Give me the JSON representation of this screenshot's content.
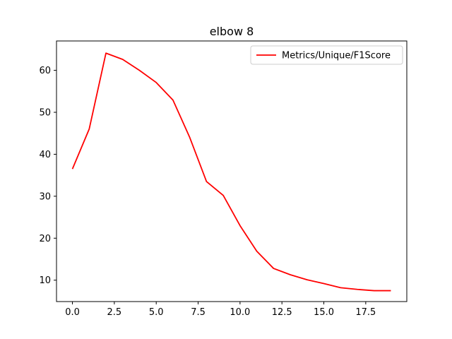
{
  "chart_data": {
    "type": "line",
    "title": "elbow 8",
    "xlabel": "",
    "ylabel": "",
    "xlim": [
      -0.95,
      19.95
    ],
    "ylim": [
      4.9,
      67.0
    ],
    "xticks": [
      0.0,
      2.5,
      5.0,
      7.5,
      10.0,
      12.5,
      15.0,
      17.5
    ],
    "xtick_labels": [
      "0.0",
      "2.5",
      "5.0",
      "7.5",
      "10.0",
      "12.5",
      "15.0",
      "17.5"
    ],
    "yticks": [
      10,
      20,
      30,
      40,
      50,
      60
    ],
    "ytick_labels": [
      "10",
      "20",
      "30",
      "40",
      "50",
      "60"
    ],
    "grid": false,
    "legend_position": "top-right",
    "series": [
      {
        "name": "Metrics/Unique/F1Score",
        "color": "#ff0000",
        "x": [
          0,
          1,
          2,
          3,
          4,
          5,
          6,
          7,
          8,
          9,
          10,
          11,
          12,
          13,
          14,
          15,
          16,
          17,
          18,
          19
        ],
        "values": [
          36.5,
          46.0,
          64.1,
          62.6,
          60.0,
          57.1,
          52.9,
          44.0,
          33.5,
          30.2,
          23.0,
          16.9,
          12.8,
          11.3,
          10.1,
          9.2,
          8.2,
          7.8,
          7.5,
          7.5
        ]
      }
    ]
  }
}
